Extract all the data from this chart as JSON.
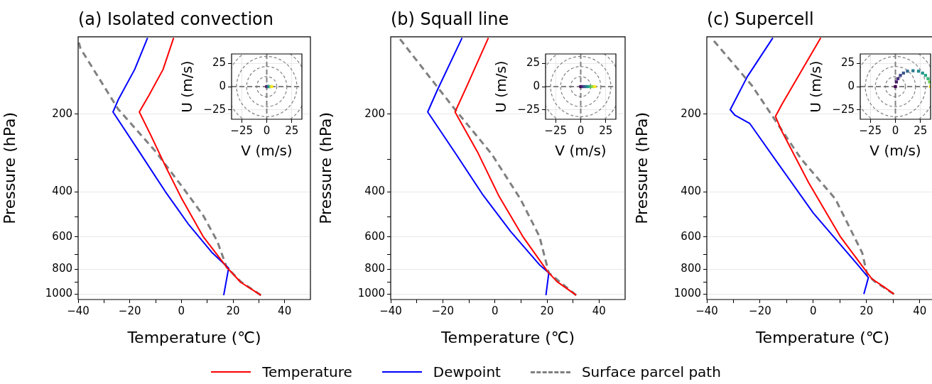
{
  "chart_data": [
    {
      "type": "line",
      "title": "(a) Isolated convection",
      "xlabel": "Temperature (℃)",
      "ylabel": "Pressure (hPa)",
      "log": "y",
      "grid": "y",
      "legend": "bottom",
      "xlim": [
        -40,
        50
      ],
      "xticks": [
        -40,
        {
          "value": -30,
          "label": null
        },
        -20,
        {
          "value": -10,
          "label": null
        },
        0,
        {
          "value": 10,
          "label": null
        },
        20,
        {
          "value": 30,
          "label": null
        },
        40
      ],
      "ylim": [
        1050,
        100
      ],
      "yticks": [
        200,
        {
          "value": 300,
          "label": null
        },
        400,
        {
          "value": 500,
          "label": null
        },
        600,
        {
          "value": 700,
          "label": null
        },
        800,
        {
          "value": 900,
          "label": null
        },
        1000
      ],
      "series": [
        {
          "name": "Temperature",
          "color": "#ff0000",
          "line_style": "solid",
          "x": [
            30.8,
            23,
            17.5,
            8.4,
            0.2,
            -6.2,
            -11.8,
            -16.3,
            -12.6,
            -7.1,
            -3
          ],
          "values": [
            1010,
            900,
            785,
            597,
            427,
            318,
            242,
            196,
            169,
            134,
            101
          ]
        },
        {
          "name": "Dewpoint",
          "color": "#0000ff",
          "line_style": "solid",
          "x": [
            16.4,
            18.3,
            12,
            2.9,
            -6.2,
            -16.3,
            -26.5,
            -24.5,
            -18.1,
            -13.1
          ],
          "values": [
            1010,
            793,
            692,
            538,
            400,
            280,
            196,
            176,
            134,
            101
          ]
        },
        {
          "name": "Surface parcel path",
          "color": "#808080",
          "line_style": "dashed",
          "x": [
            30.8,
            23,
            17.5,
            13.9,
            8.4,
            1.1,
            -9.9,
            -24.5,
            -39.1,
            -40
          ],
          "values": [
            1010,
            895,
            785,
            623,
            494,
            392,
            280,
            191,
            111,
            103
          ]
        }
      ]
    },
    {
      "type": "scatter",
      "xlabel": "V (m/s)",
      "ylabel": "U (m/s)",
      "marker": "square",
      "grid": true,
      "xlim": [
        -35,
        35
      ],
      "xticks": [
        -25,
        0,
        25
      ],
      "ylim": [
        -35,
        35
      ],
      "yticks": [
        -25,
        0,
        25
      ],
      "x": [
        0,
        1,
        2,
        3,
        4,
        5
      ],
      "values": [
        0,
        0,
        0,
        0,
        0,
        0
      ],
      "colors": [
        "#440154",
        "#414487",
        "#2a788e",
        "#22a884",
        "#7ad151",
        "#fde725"
      ]
    },
    {
      "type": "line",
      "title": "(b) Squall line",
      "xlabel": "Temperature (℃)",
      "ylabel": "Pressure (hPa)",
      "log": "y",
      "grid": "y",
      "xlim": [
        -40,
        50
      ],
      "xticks": [
        -40,
        {
          "value": -30,
          "label": null
        },
        -20,
        {
          "value": -10,
          "label": null
        },
        0,
        {
          "value": 10,
          "label": null
        },
        20,
        {
          "value": 30,
          "label": null
        },
        40
      ],
      "ylim": [
        1050,
        100
      ],
      "yticks": [
        200,
        {
          "value": 300,
          "label": null
        },
        400,
        {
          "value": 500,
          "label": null
        },
        600,
        {
          "value": 700,
          "label": null
        },
        800,
        {
          "value": 900,
          "label": null
        },
        1000
      ],
      "series": [
        {
          "color": "#ff0000",
          "line_style": "solid",
          "x": [
            31.2,
            23.9,
            20.3,
            10.7,
            1.6,
            -6.7,
            -15.3,
            -11.2,
            -2.5
          ],
          "values": [
            1010,
            895,
            819,
            597,
            417,
            280,
            196,
            159,
            101
          ]
        },
        {
          "color": "#0000ff",
          "line_style": "solid",
          "x": [
            19.6,
            20.7,
            17.1,
            6.1,
            -4.8,
            -14.9,
            -25.8,
            -22.2,
            -12.6
          ],
          "values": [
            1010,
            827,
            769,
            572,
            409,
            286,
            196,
            162,
            101
          ]
        },
        {
          "color": "#808080",
          "line_style": "dashed",
          "x": [
            31.2,
            20.7,
            17.1,
            9.8,
            -1.2,
            -16.7,
            -36.8,
            -37.5
          ],
          "values": [
            1010,
            827,
            597,
            427,
            286,
            184,
            101,
            100
          ]
        }
      ]
    },
    {
      "type": "scatter",
      "xlabel": "V (m/s)",
      "ylabel": "U (m/s)",
      "marker": "square",
      "grid": true,
      "xlim": [
        -35,
        35
      ],
      "xticks": [
        -25,
        0,
        25
      ],
      "ylim": [
        -35,
        35
      ],
      "yticks": [
        -25,
        0,
        25
      ],
      "x": [
        0,
        2,
        4,
        6,
        8,
        10,
        12,
        14
      ],
      "values": [
        0,
        0,
        0,
        0,
        0,
        0,
        0,
        0
      ],
      "colors": [
        "#440154",
        "#46327e",
        "#365c8d",
        "#277f8e",
        "#1fa187",
        "#4ac16d",
        "#a0da39",
        "#fde725"
      ]
    },
    {
      "type": "line",
      "title": "(c) Supercell",
      "xlabel": "Temperature (℃)",
      "ylabel": "Pressure (hPa)",
      "log": "y",
      "grid": "y",
      "xlim": [
        -40,
        47
      ],
      "xticks": [
        -40,
        {
          "value": -30,
          "label": null
        },
        -20,
        {
          "value": -10,
          "label": null
        },
        0,
        {
          "value": 10,
          "label": null
        },
        20,
        {
          "value": 30,
          "label": null
        },
        40
      ],
      "ylim": [
        1050,
        100
      ],
      "yticks": [
        200,
        {
          "value": 300,
          "label": null
        },
        400,
        {
          "value": 500,
          "label": null
        },
        600,
        {
          "value": 700,
          "label": null
        },
        800,
        {
          "value": 900,
          "label": null
        },
        1000
      ],
      "series": [
        {
          "color": "#ff0000",
          "line_style": "solid",
          "x": [
            30.3,
            26.6,
            22,
            19.3,
            10.1,
            -1.8,
            -11.9,
            -14.2,
            -11.9,
            2.8
          ],
          "values": [
            1000,
            939,
            872,
            801,
            597,
            368,
            232,
            204,
            184,
            101
          ]
        },
        {
          "color": "#0000ff",
          "line_style": "solid",
          "x": [
            19,
            20.7,
            17.4,
            0,
            -13.8,
            -23.9,
            -29.4,
            -31.2,
            -24.8,
            -15.2
          ],
          "values": [
            1000,
            863,
            785,
            484,
            305,
            217,
            202,
            192,
            143,
            101
          ]
        },
        {
          "color": "#808080",
          "line_style": "dashed",
          "x": [
            30.3,
            22.9,
            20.2,
            18.4,
            8.3,
            -4.6,
            -23,
            -37.6
          ],
          "values": [
            1000,
            891,
            836,
            692,
            427,
            298,
            155,
            103
          ]
        }
      ]
    },
    {
      "type": "scatter",
      "xlabel": "V (m/s)",
      "ylabel": "U (m/s)",
      "marker": "square",
      "grid": true,
      "xlim": [
        -35,
        35
      ],
      "xticks": [
        -25,
        0,
        25
      ],
      "ylim": [
        -35,
        35
      ],
      "yticks": [
        -25,
        0,
        25
      ],
      "x": [
        0,
        1,
        2.5,
        5,
        8,
        12,
        17.5,
        23,
        27,
        30,
        32.5,
        34,
        35
      ],
      "values": [
        0,
        5,
        8.5,
        12,
        14.5,
        16.5,
        17,
        16.5,
        14.5,
        12,
        8.5,
        5,
        0
      ],
      "colors": [
        "#440154",
        "#481a6c",
        "#472f7d",
        "#414487",
        "#39568c",
        "#31688e",
        "#2a788e",
        "#23888e",
        "#1f988b",
        "#22a884",
        "#35b779",
        "#7ad151",
        "#fde725"
      ]
    }
  ]
}
